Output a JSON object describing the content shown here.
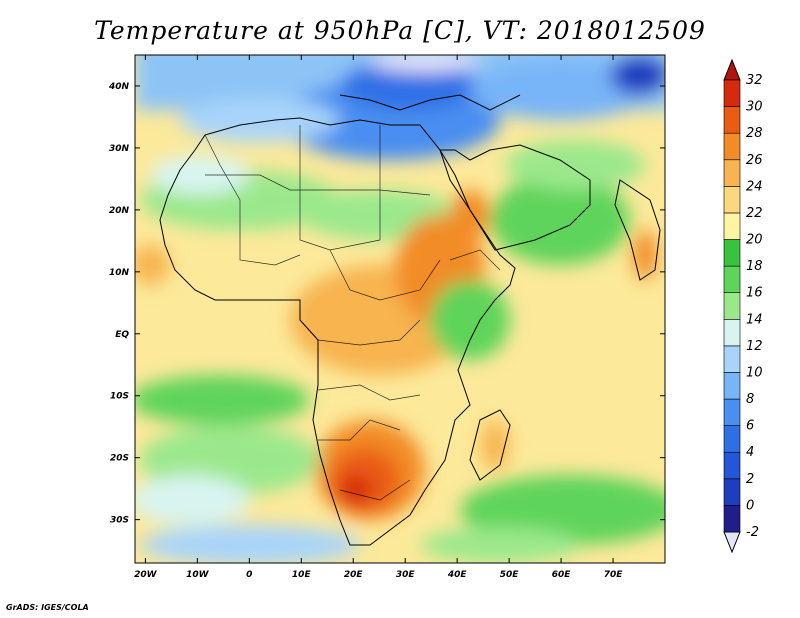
{
  "title": "Temperature at 950hPa [C], VT: 2018012509",
  "footer": "GrADS: IGES/COLA",
  "chart_data": {
    "type": "heatmap",
    "variable": "Temperature at 950hPa",
    "units": "C",
    "valid_time": "2018012509",
    "lon_range": [
      -22,
      80
    ],
    "lat_range": [
      -37,
      45
    ],
    "x_tick_labels": [
      "20W",
      "10W",
      "0",
      "10E",
      "20E",
      "30E",
      "40E",
      "50E",
      "60E",
      "70E"
    ],
    "x_tick_values": [
      -20,
      -10,
      0,
      10,
      20,
      30,
      40,
      50,
      60,
      70
    ],
    "y_tick_labels": [
      "40N",
      "30N",
      "20N",
      "10N",
      "EQ",
      "10S",
      "20S",
      "30S"
    ],
    "y_tick_values": [
      40,
      30,
      20,
      10,
      0,
      -10,
      -20,
      -30
    ],
    "colorbar": {
      "levels": [
        -2,
        0,
        2,
        4,
        6,
        8,
        10,
        12,
        14,
        16,
        18,
        20,
        22,
        24,
        26,
        28,
        30,
        32
      ],
      "colors": [
        "#e6e6fa",
        "#1e1e8c",
        "#1f3dbf",
        "#2457d8",
        "#2f6fe6",
        "#4a8ef0",
        "#78b4f8",
        "#a8d4fa",
        "#d8f4f0",
        "#9be88c",
        "#5ed45a",
        "#38c23e",
        "#fdf4a4",
        "#fad87c",
        "#f7b450",
        "#f28c28",
        "#ea5c14",
        "#d62a10",
        "#b4140c"
      ]
    }
  }
}
